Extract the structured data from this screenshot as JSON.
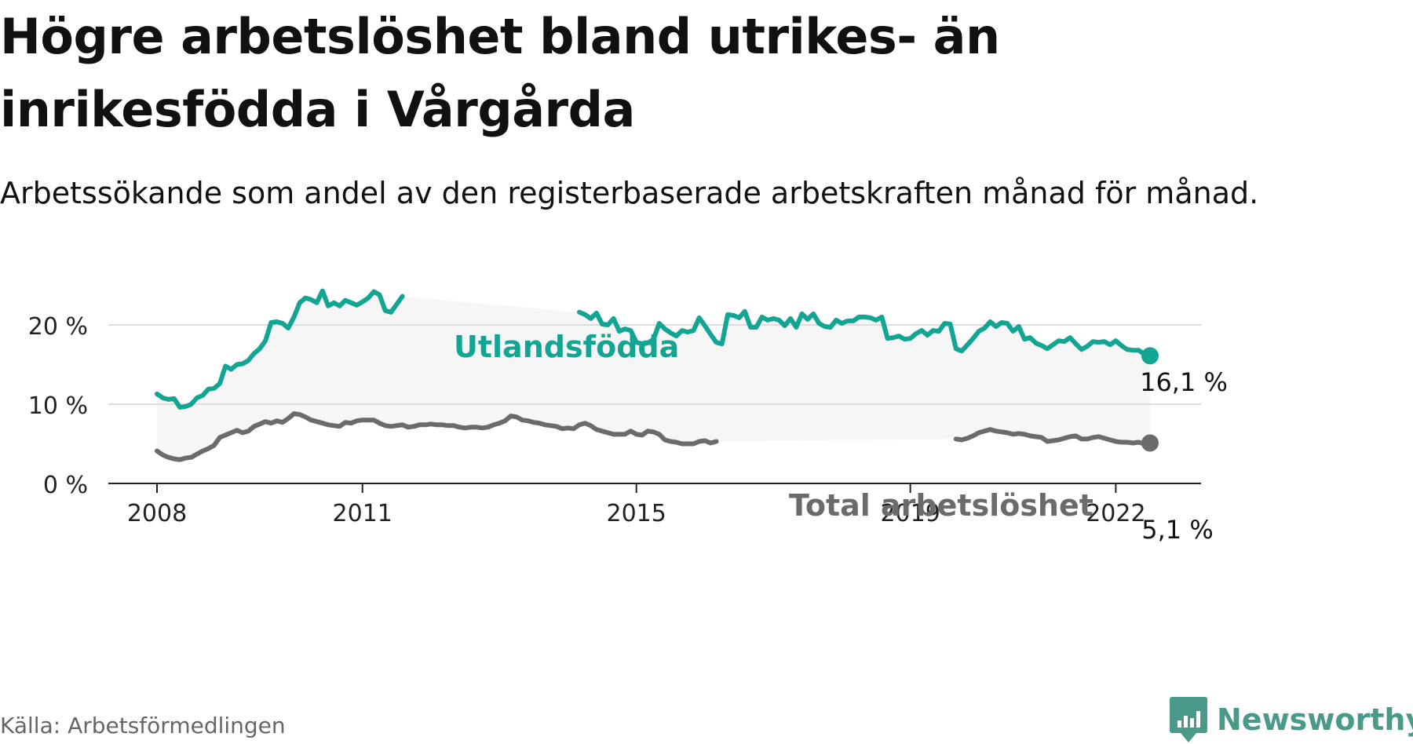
{
  "header": {
    "title": "Högre arbetslöshet bland utrikes- än inrikesfödda i Vårgårda",
    "subtitle": "Arbetssökande som andel av den registerbaserade arbetskraften månad för månad."
  },
  "footer": {
    "source": "Källa: Arbetsförmedlingen",
    "brand": "Newsworthy"
  },
  "colors": {
    "utlandsfodda": "#13a594",
    "total": "#6b6b6b",
    "band": "#f6f6f6",
    "grid": "#dddddd",
    "brand": "#4a9a8c"
  },
  "chart_data": {
    "type": "line",
    "x_unit": "month",
    "x_range": [
      "2008-01",
      "2022-12"
    ],
    "ylim": [
      0,
      25
    ],
    "yticks": [
      0,
      10,
      20
    ],
    "ytick_labels": [
      "0 %",
      "10 %",
      "20 %"
    ],
    "xticks": [
      2008,
      2011,
      2015,
      2019,
      2022
    ],
    "xtick_labels": [
      "2008",
      "2011",
      "2015",
      "2019",
      "2022"
    ],
    "grid": true,
    "shaded_between_series": true,
    "series": [
      {
        "name": "Utlandsfödda",
        "color": "#13a594",
        "end_label": "16,1 %",
        "points": [
          [
            "2008-01",
            11.3
          ],
          [
            "2008-02",
            10.8
          ],
          [
            "2008-03",
            10.6
          ],
          [
            "2008-04",
            10.7
          ],
          [
            "2008-05",
            9.6
          ],
          [
            "2008-06",
            9.7
          ],
          [
            "2008-07",
            10.0
          ],
          [
            "2008-08",
            10.8
          ],
          [
            "2008-09",
            11.1
          ],
          [
            "2008-10",
            11.9
          ],
          [
            "2008-11",
            12.0
          ],
          [
            "2008-12",
            12.6
          ],
          [
            "2009-01",
            14.8
          ],
          [
            "2009-02",
            14.4
          ],
          [
            "2009-03",
            15.0
          ],
          [
            "2009-04",
            15.1
          ],
          [
            "2009-05",
            15.5
          ],
          [
            "2009-06",
            16.4
          ],
          [
            "2009-07",
            17.0
          ],
          [
            "2009-08",
            18.0
          ],
          [
            "2009-09",
            20.3
          ],
          [
            "2009-10",
            20.4
          ],
          [
            "2009-11",
            20.2
          ],
          [
            "2009-12",
            19.6
          ],
          [
            "2010-01",
            21.0
          ],
          [
            "2010-02",
            22.8
          ],
          [
            "2010-03",
            23.4
          ],
          [
            "2010-04",
            23.2
          ],
          [
            "2010-05",
            22.8
          ],
          [
            "2010-06",
            24.3
          ],
          [
            "2010-07",
            22.4
          ],
          [
            "2010-08",
            22.8
          ],
          [
            "2010-09",
            22.4
          ],
          [
            "2010-10",
            23.1
          ],
          [
            "2010-11",
            22.8
          ],
          [
            "2010-12",
            22.5
          ],
          [
            "2011-01",
            22.9
          ],
          [
            "2011-02",
            23.4
          ],
          [
            "2011-03",
            24.2
          ],
          [
            "2011-04",
            23.8
          ],
          [
            "2011-05",
            21.8
          ],
          [
            "2011-06",
            21.6
          ],
          [
            "2011-07",
            22.6
          ],
          [
            "2011-08",
            23.6
          ],
          [
            "2014-03",
            21.6
          ],
          [
            "2014-04",
            21.3
          ],
          [
            "2014-05",
            20.8
          ],
          [
            "2014-06",
            21.5
          ],
          [
            "2014-07",
            20.1
          ],
          [
            "2014-08",
            20.0
          ],
          [
            "2014-09",
            20.8
          ],
          [
            "2014-10",
            19.2
          ],
          [
            "2014-11",
            19.5
          ],
          [
            "2014-12",
            19.3
          ],
          [
            "2015-01",
            17.8
          ],
          [
            "2015-02",
            17.6
          ],
          [
            "2015-03",
            17.7
          ],
          [
            "2015-04",
            18.2
          ],
          [
            "2015-05",
            20.2
          ],
          [
            "2015-06",
            19.5
          ],
          [
            "2015-07",
            19.0
          ],
          [
            "2015-08",
            18.6
          ],
          [
            "2015-09",
            19.3
          ],
          [
            "2015-10",
            19.1
          ],
          [
            "2015-11",
            19.3
          ],
          [
            "2015-12",
            20.9
          ],
          [
            "2016-01",
            19.9
          ],
          [
            "2016-02",
            18.8
          ],
          [
            "2016-03",
            17.8
          ],
          [
            "2016-04",
            17.6
          ],
          [
            "2016-05",
            21.3
          ],
          [
            "2016-06",
            21.2
          ],
          [
            "2016-07",
            20.9
          ],
          [
            "2016-08",
            21.7
          ],
          [
            "2016-09",
            19.7
          ],
          [
            "2016-10",
            19.7
          ],
          [
            "2016-11",
            21.0
          ],
          [
            "2016-12",
            20.6
          ],
          [
            "2017-01",
            20.8
          ],
          [
            "2017-02",
            20.6
          ],
          [
            "2017-03",
            19.9
          ],
          [
            "2017-04",
            20.8
          ],
          [
            "2017-05",
            19.7
          ],
          [
            "2017-06",
            21.4
          ],
          [
            "2017-07",
            20.7
          ],
          [
            "2017-08",
            21.4
          ],
          [
            "2017-09",
            20.2
          ],
          [
            "2017-10",
            19.8
          ],
          [
            "2017-11",
            19.7
          ],
          [
            "2017-12",
            20.6
          ],
          [
            "2018-01",
            20.2
          ],
          [
            "2018-02",
            20.5
          ],
          [
            "2018-03",
            20.5
          ],
          [
            "2018-04",
            21.0
          ],
          [
            "2018-05",
            21.0
          ],
          [
            "2018-06",
            20.9
          ],
          [
            "2018-07",
            20.6
          ],
          [
            "2018-08",
            21.0
          ],
          [
            "2018-09",
            18.3
          ],
          [
            "2018-10",
            18.4
          ],
          [
            "2018-11",
            18.6
          ],
          [
            "2018-12",
            18.2
          ],
          [
            "2019-01",
            18.3
          ],
          [
            "2019-02",
            18.9
          ],
          [
            "2019-03",
            19.3
          ],
          [
            "2019-04",
            18.7
          ],
          [
            "2019-05",
            19.3
          ],
          [
            "2019-06",
            19.2
          ],
          [
            "2019-07",
            20.2
          ],
          [
            "2019-08",
            20.1
          ],
          [
            "2019-09",
            17.0
          ],
          [
            "2019-10",
            16.7
          ],
          [
            "2019-11",
            17.5
          ],
          [
            "2019-12",
            18.3
          ],
          [
            "2020-01",
            19.2
          ],
          [
            "2020-02",
            19.6
          ],
          [
            "2020-03",
            20.4
          ],
          [
            "2020-04",
            19.8
          ],
          [
            "2020-05",
            20.3
          ],
          [
            "2020-06",
            20.2
          ],
          [
            "2020-07",
            19.2
          ],
          [
            "2020-08",
            19.8
          ],
          [
            "2020-09",
            18.2
          ],
          [
            "2020-10",
            18.4
          ],
          [
            "2020-11",
            17.7
          ],
          [
            "2020-12",
            17.4
          ],
          [
            "2021-01",
            17.0
          ],
          [
            "2021-02",
            17.5
          ],
          [
            "2021-03",
            18.0
          ],
          [
            "2021-04",
            17.9
          ],
          [
            "2021-05",
            18.4
          ],
          [
            "2021-06",
            17.6
          ],
          [
            "2021-07",
            16.9
          ],
          [
            "2021-08",
            17.3
          ],
          [
            "2021-09",
            17.9
          ],
          [
            "2021-10",
            17.8
          ],
          [
            "2021-11",
            17.9
          ],
          [
            "2021-12",
            17.5
          ],
          [
            "2022-01",
            18.0
          ],
          [
            "2022-02",
            17.4
          ],
          [
            "2022-03",
            16.9
          ],
          [
            "2022-04",
            16.8
          ],
          [
            "2022-05",
            16.8
          ],
          [
            "2022-06",
            16.3
          ],
          [
            "2022-07",
            16.1
          ]
        ]
      },
      {
        "name": "Total arbetslöshet",
        "color": "#6b6b6b",
        "end_label": "5,1 %",
        "points": [
          [
            "2008-01",
            4.1
          ],
          [
            "2008-02",
            3.6
          ],
          [
            "2008-03",
            3.3
          ],
          [
            "2008-04",
            3.1
          ],
          [
            "2008-05",
            3.0
          ],
          [
            "2008-06",
            3.2
          ],
          [
            "2008-07",
            3.3
          ],
          [
            "2008-08",
            3.7
          ],
          [
            "2008-09",
            4.1
          ],
          [
            "2008-10",
            4.4
          ],
          [
            "2008-11",
            4.8
          ],
          [
            "2008-12",
            5.8
          ],
          [
            "2009-01",
            6.1
          ],
          [
            "2009-02",
            6.4
          ],
          [
            "2009-03",
            6.7
          ],
          [
            "2009-04",
            6.4
          ],
          [
            "2009-05",
            6.6
          ],
          [
            "2009-06",
            7.2
          ],
          [
            "2009-07",
            7.5
          ],
          [
            "2009-08",
            7.8
          ],
          [
            "2009-09",
            7.6
          ],
          [
            "2009-10",
            7.9
          ],
          [
            "2009-11",
            7.7
          ],
          [
            "2009-12",
            8.2
          ],
          [
            "2010-01",
            8.8
          ],
          [
            "2010-02",
            8.7
          ],
          [
            "2010-03",
            8.4
          ],
          [
            "2010-04",
            8.0
          ],
          [
            "2010-05",
            7.8
          ],
          [
            "2010-06",
            7.6
          ],
          [
            "2010-07",
            7.4
          ],
          [
            "2010-08",
            7.3
          ],
          [
            "2010-09",
            7.2
          ],
          [
            "2010-10",
            7.7
          ],
          [
            "2010-11",
            7.6
          ],
          [
            "2010-12",
            7.9
          ],
          [
            "2011-01",
            8.0
          ],
          [
            "2011-02",
            8.0
          ],
          [
            "2011-03",
            8.0
          ],
          [
            "2011-04",
            7.6
          ],
          [
            "2011-05",
            7.3
          ],
          [
            "2011-06",
            7.2
          ],
          [
            "2011-07",
            7.3
          ],
          [
            "2011-08",
            7.4
          ],
          [
            "2011-09",
            7.1
          ],
          [
            "2011-10",
            7.2
          ],
          [
            "2011-11",
            7.4
          ],
          [
            "2011-12",
            7.4
          ],
          [
            "2012-01",
            7.5
          ],
          [
            "2012-02",
            7.4
          ],
          [
            "2012-03",
            7.4
          ],
          [
            "2012-04",
            7.3
          ],
          [
            "2012-05",
            7.3
          ],
          [
            "2012-06",
            7.1
          ],
          [
            "2012-07",
            7.0
          ],
          [
            "2012-08",
            7.1
          ],
          [
            "2012-09",
            7.1
          ],
          [
            "2012-10",
            7.0
          ],
          [
            "2012-11",
            7.1
          ],
          [
            "2012-12",
            7.4
          ],
          [
            "2013-01",
            7.6
          ],
          [
            "2013-02",
            7.9
          ],
          [
            "2013-03",
            8.5
          ],
          [
            "2013-04",
            8.4
          ],
          [
            "2013-05",
            8.0
          ],
          [
            "2013-06",
            7.9
          ],
          [
            "2013-07",
            7.7
          ],
          [
            "2013-08",
            7.6
          ],
          [
            "2013-09",
            7.4
          ],
          [
            "2013-10",
            7.3
          ],
          [
            "2013-11",
            7.2
          ],
          [
            "2013-12",
            6.9
          ],
          [
            "2014-01",
            7.0
          ],
          [
            "2014-02",
            6.9
          ],
          [
            "2014-03",
            7.4
          ],
          [
            "2014-04",
            7.6
          ],
          [
            "2014-05",
            7.3
          ],
          [
            "2014-06",
            6.8
          ],
          [
            "2014-07",
            6.6
          ],
          [
            "2014-08",
            6.4
          ],
          [
            "2014-09",
            6.2
          ],
          [
            "2014-10",
            6.2
          ],
          [
            "2014-11",
            6.2
          ],
          [
            "2014-12",
            6.6
          ],
          [
            "2015-01",
            6.2
          ],
          [
            "2015-02",
            6.1
          ],
          [
            "2015-03",
            6.6
          ],
          [
            "2015-04",
            6.5
          ],
          [
            "2015-05",
            6.2
          ],
          [
            "2015-06",
            5.5
          ],
          [
            "2015-07",
            5.3
          ],
          [
            "2015-08",
            5.2
          ],
          [
            "2015-09",
            5.0
          ],
          [
            "2015-10",
            5.0
          ],
          [
            "2015-11",
            5.0
          ],
          [
            "2015-12",
            5.3
          ],
          [
            "2016-01",
            5.4
          ],
          [
            "2016-02",
            5.1
          ],
          [
            "2016-03",
            5.3
          ],
          [
            "2019-09",
            5.6
          ],
          [
            "2019-10",
            5.5
          ],
          [
            "2019-11",
            5.7
          ],
          [
            "2019-12",
            6.0
          ],
          [
            "2020-01",
            6.4
          ],
          [
            "2020-02",
            6.6
          ],
          [
            "2020-03",
            6.8
          ],
          [
            "2020-04",
            6.6
          ],
          [
            "2020-05",
            6.5
          ],
          [
            "2020-06",
            6.4
          ],
          [
            "2020-07",
            6.2
          ],
          [
            "2020-08",
            6.3
          ],
          [
            "2020-09",
            6.2
          ],
          [
            "2020-10",
            6.0
          ],
          [
            "2020-11",
            5.9
          ],
          [
            "2020-12",
            5.8
          ],
          [
            "2021-01",
            5.3
          ],
          [
            "2021-02",
            5.4
          ],
          [
            "2021-03",
            5.5
          ],
          [
            "2021-04",
            5.7
          ],
          [
            "2021-05",
            5.9
          ],
          [
            "2021-06",
            6.0
          ],
          [
            "2021-07",
            5.6
          ],
          [
            "2021-08",
            5.6
          ],
          [
            "2021-09",
            5.8
          ],
          [
            "2021-10",
            5.9
          ],
          [
            "2021-11",
            5.7
          ],
          [
            "2021-12",
            5.5
          ],
          [
            "2022-01",
            5.3
          ],
          [
            "2022-02",
            5.2
          ],
          [
            "2022-03",
            5.2
          ],
          [
            "2022-04",
            5.1
          ],
          [
            "2022-05",
            5.2
          ],
          [
            "2022-06",
            5.0
          ],
          [
            "2022-07",
            5.1
          ]
        ]
      }
    ]
  }
}
